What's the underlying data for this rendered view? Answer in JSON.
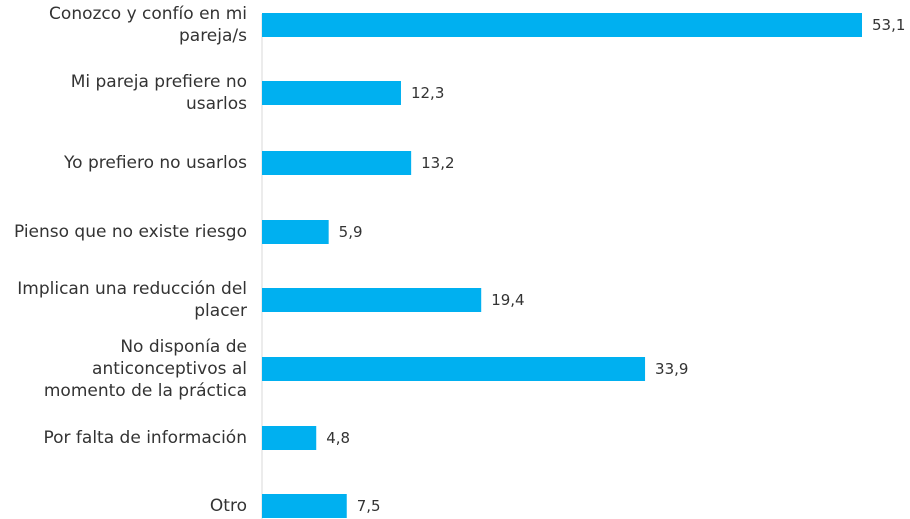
{
  "chart_data": {
    "type": "bar",
    "orientation": "horizontal",
    "title": "",
    "xlabel": "",
    "ylabel": "",
    "categories": [
      "Conozco y confío en mi pareja/s",
      "Mi pareja prefiere no usarlos",
      "Yo prefiero no usarlos",
      "Pienso que no existe riesgo",
      "Implican una reducción del placer",
      "No disponía de anticonceptivos al momento de la práctica",
      "Por falta de información",
      "Otro"
    ],
    "category_lines": [
      [
        "Conozco y confío en mi",
        "pareja/s"
      ],
      [
        "Mi pareja prefiere no",
        "usarlos"
      ],
      [
        "Yo prefiero no usarlos"
      ],
      [
        "Pienso que no existe riesgo"
      ],
      [
        "Implican una reducción del",
        "placer"
      ],
      [
        "No disponía de",
        "anticonceptivos al",
        "momento de la práctica"
      ],
      [
        "Por falta de información"
      ],
      [
        "Otro"
      ]
    ],
    "values": [
      53.1,
      12.3,
      13.2,
      5.9,
      19.4,
      33.9,
      4.8,
      7.5
    ],
    "value_labels": [
      "53,1",
      "12,3",
      "13,2",
      "5,9",
      "19,4",
      "33,9",
      "4,8",
      "7,5"
    ],
    "xlim": [
      0,
      53.1
    ],
    "bar_color": "#00b0f0",
    "axis_color": "#d9d9d9",
    "text_color": "#333333",
    "grid": false,
    "legend": "none"
  }
}
